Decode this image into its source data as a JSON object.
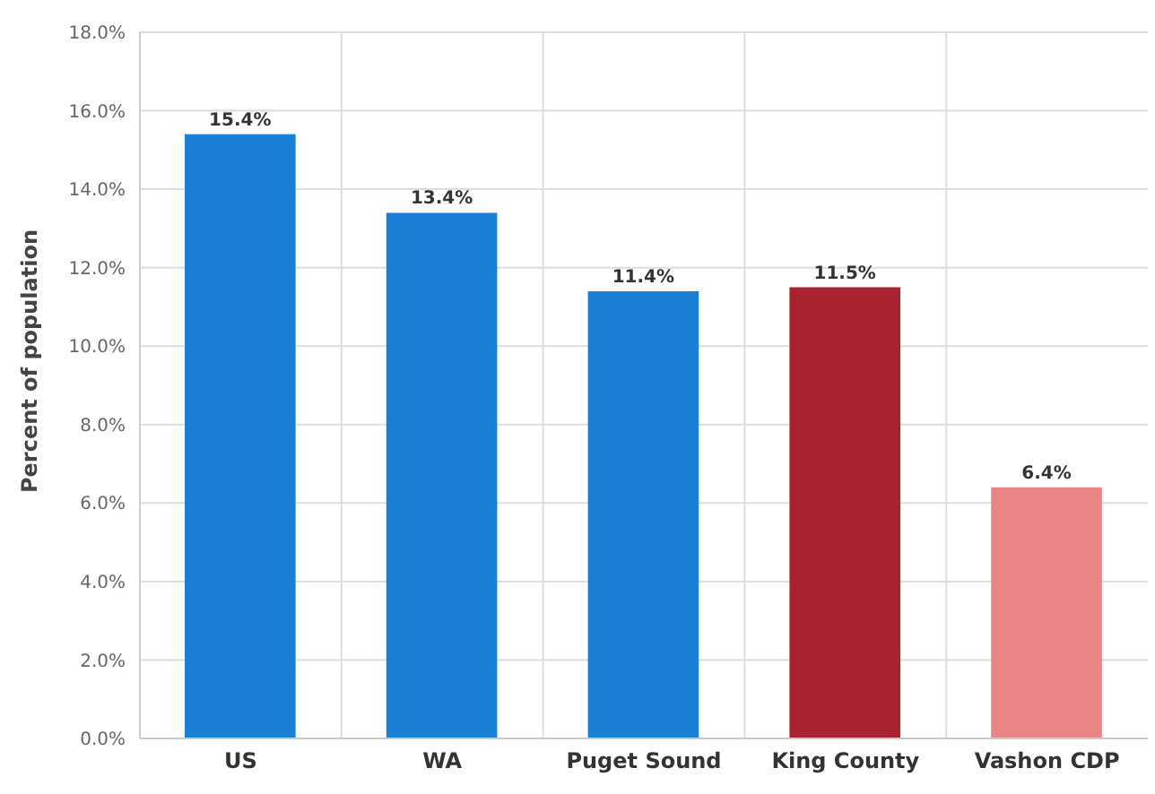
{
  "chart_data": {
    "type": "bar",
    "ylabel": "Percent of population",
    "categories": [
      "US",
      "WA",
      "Puget Sound",
      "King County",
      "Vashon CDP"
    ],
    "values": [
      15.4,
      13.4,
      11.4,
      11.5,
      6.4
    ],
    "colors": [
      "#1a80d6",
      "#1a80d6",
      "#1a80d6",
      "#a8222f",
      "#ea8585"
    ],
    "value_labels": [
      "15.4%",
      "13.4%",
      "11.4%",
      "11.5%",
      "6.4%"
    ],
    "ylim": [
      0,
      18
    ],
    "yticks": [
      {
        "value": 0,
        "label": "0.0%"
      },
      {
        "value": 2,
        "label": "2.0%"
      },
      {
        "value": 4,
        "label": "4.0%"
      },
      {
        "value": 6,
        "label": "6.0%"
      },
      {
        "value": 8,
        "label": "8.0%"
      },
      {
        "value": 10,
        "label": "10.0%"
      },
      {
        "value": 12,
        "label": "12.0%"
      },
      {
        "value": 14,
        "label": "14.0%"
      },
      {
        "value": 16,
        "label": "16.0%"
      },
      {
        "value": 18,
        "label": "18.0%"
      }
    ],
    "grid": true
  }
}
